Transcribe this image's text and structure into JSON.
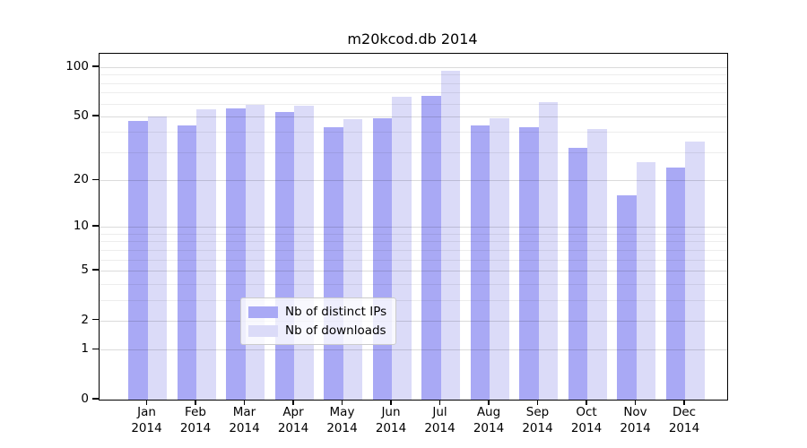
{
  "chart_data": {
    "type": "bar",
    "title": "m20kcod.db 2014",
    "categories": [
      "Jan",
      "Feb",
      "Mar",
      "Apr",
      "May",
      "Jun",
      "Jul",
      "Aug",
      "Sep",
      "Oct",
      "Nov",
      "Dec"
    ],
    "year_label": "2014",
    "series": [
      {
        "name": "Nb of distinct IPs",
        "color": "#a9a9f5",
        "values": [
          47,
          44,
          56,
          53,
          43,
          49,
          67,
          44,
          43,
          32,
          16,
          24
        ]
      },
      {
        "name": "Nb of downloads",
        "color": "#dbdbf8",
        "values": [
          50,
          55,
          59,
          58,
          48,
          66,
          95,
          49,
          61,
          42,
          26,
          35
        ]
      }
    ],
    "yscale": "log10(value+1)",
    "yticks": [
      0,
      1,
      2,
      5,
      10,
      20,
      50,
      100
    ],
    "minor_gridlines": [
      3,
      4,
      6,
      7,
      8,
      9,
      30,
      40,
      60,
      70,
      80,
      90
    ],
    "ylim": [
      0,
      121
    ],
    "grid": true,
    "legend_position": "lower center",
    "xlabel": "",
    "ylabel": ""
  }
}
